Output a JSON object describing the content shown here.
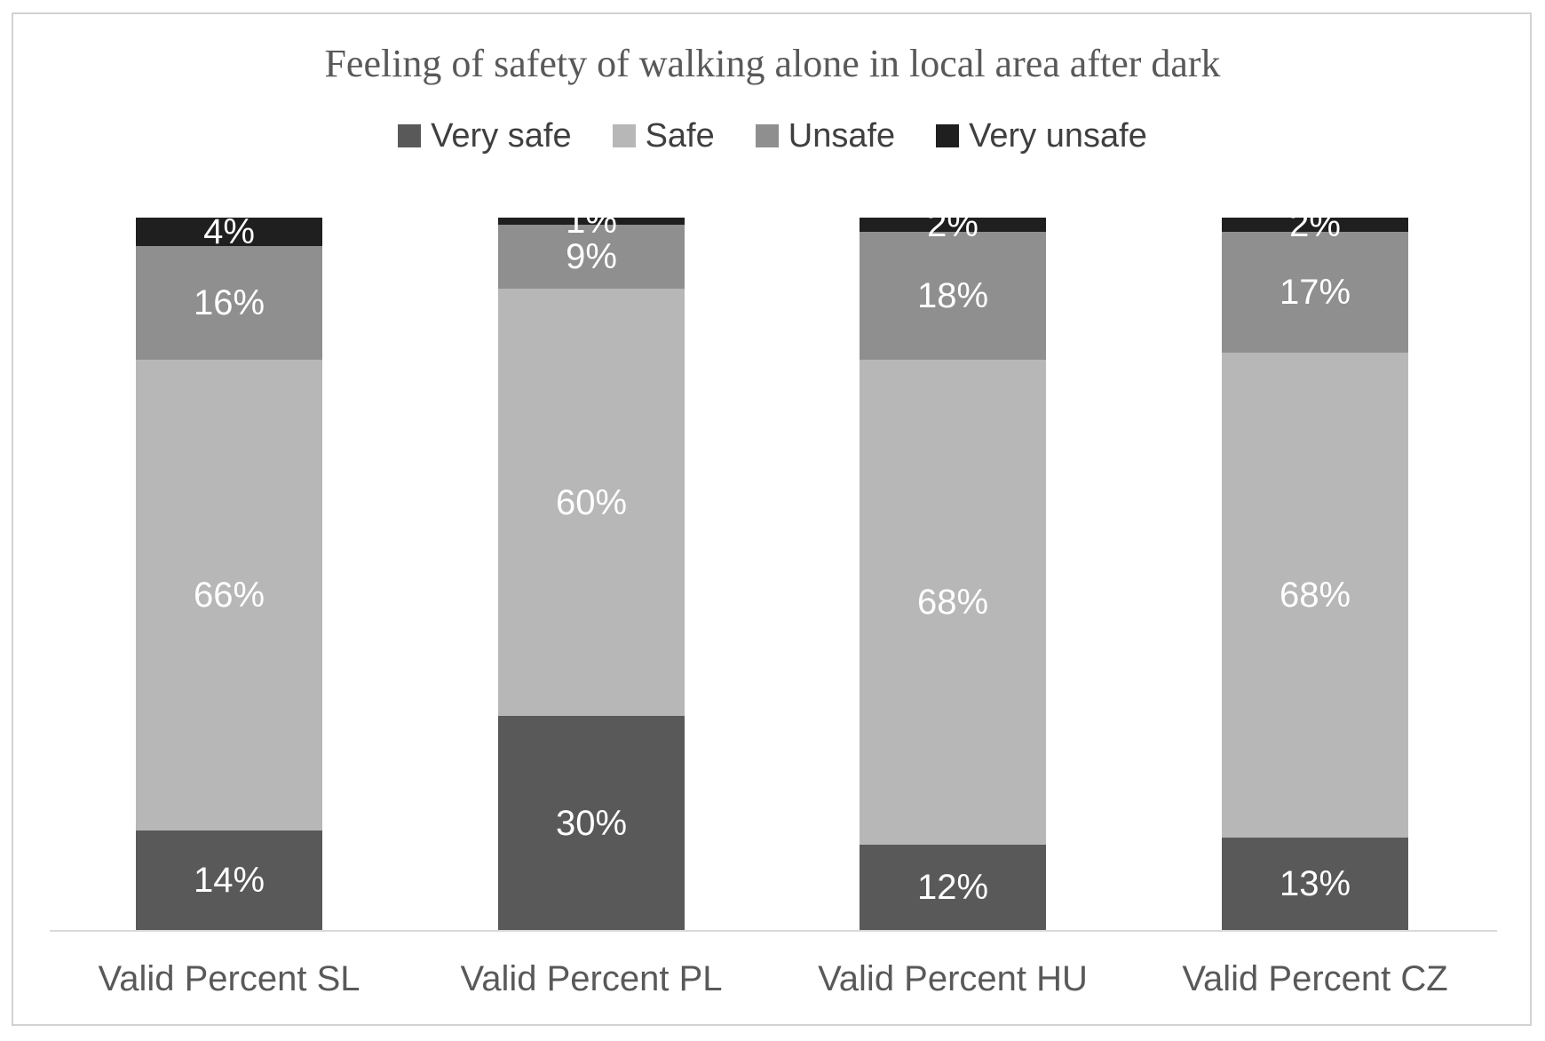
{
  "page": {
    "background": "#ffffff",
    "frame_border_color": "#d2d2d2"
  },
  "chart_data": {
    "type": "bar",
    "subtype": "stacked-100-percent",
    "title": "Feeling of safety of walking alone in local area after dark",
    "title_color": "#595959",
    "categories": [
      "Valid Percent SL",
      "Valid Percent PL",
      "Valid Percent HU",
      "Valid Percent CZ"
    ],
    "series": [
      {
        "name": "Very safe",
        "color": "#595959",
        "values": [
          14,
          30,
          12,
          13
        ]
      },
      {
        "name": "Safe",
        "color": "#b7b7b7",
        "values": [
          66,
          60,
          68,
          68
        ]
      },
      {
        "name": "Unsafe",
        "color": "#8f8f8f",
        "values": [
          16,
          9,
          18,
          17
        ]
      },
      {
        "name": "Very unsafe",
        "color": "#1f1f1f",
        "values": [
          4,
          1,
          2,
          2
        ]
      }
    ],
    "data_label_suffix": "%",
    "data_label_color": "#ffffff",
    "legend_position": "top",
    "legend_text_color": "#3f3f3f",
    "axis_label_color": "#595959",
    "axis_line_color": "#d9d9d9",
    "ylim": [
      0,
      100
    ],
    "grid": false,
    "y_axis_visible": false
  }
}
